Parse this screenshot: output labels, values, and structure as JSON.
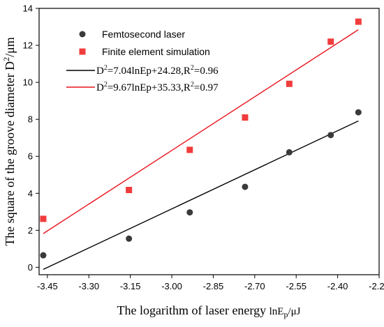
{
  "chart_data": {
    "type": "scatter",
    "xlabel_main": "The logarithm of laser energy ",
    "xlabel_unit": "lnE",
    "xlabel_sub": "p",
    "xlabel_tail": "/μJ",
    "ylabel_main": "The square of the groove diameter D",
    "ylabel_sup": "2",
    "ylabel_tail": "/μm",
    "xlim": [
      -3.48,
      -2.25
    ],
    "ylim": [
      -0.4,
      14
    ],
    "xticks": [
      -3.45,
      -3.3,
      -3.15,
      -3.0,
      -2.85,
      -2.7,
      -2.55,
      -2.4,
      -2.25
    ],
    "xtick_labels": [
      "-3.45",
      "-3.30",
      "-3.15",
      "-3.00",
      "-2.85",
      "-2.70",
      "-2.55",
      "-2.40",
      "-2.25"
    ],
    "yticks": [
      0,
      2,
      4,
      6,
      8,
      10,
      12,
      14
    ],
    "ytick_labels": [
      "0",
      "2",
      "4",
      "6",
      "8",
      "10",
      "12",
      "14"
    ],
    "grid": false,
    "legend_position": "top-left",
    "series": [
      {
        "name": "Femtosecond laser",
        "marker": "circle",
        "color": "#3a3a3a",
        "x": [
          -3.465,
          -3.155,
          -2.935,
          -2.735,
          -2.575,
          -2.425,
          -2.325
        ],
        "y": [
          0.65,
          1.55,
          2.97,
          4.35,
          6.22,
          7.15,
          8.38
        ]
      },
      {
        "name": "Finite element simulation",
        "marker": "square",
        "color": "#f03c3c",
        "x": [
          -3.465,
          -3.155,
          -2.935,
          -2.735,
          -2.575,
          -2.425,
          -2.325
        ],
        "y": [
          2.62,
          4.18,
          6.35,
          8.1,
          9.92,
          12.2,
          13.28
        ]
      }
    ],
    "fits": [
      {
        "label_main": "D",
        "label_sup": "2",
        "label_rest": "=7.04lnEp+24.28,R",
        "label_sup2": "2",
        "label_end": "=0.96",
        "color": "#000000",
        "slope": 7.04,
        "intercept": 24.28,
        "x_range": [
          -3.465,
          -2.325
        ]
      },
      {
        "label_main": "D",
        "label_sup": "2",
        "label_rest": "=9.67lnEp+35.33,R",
        "label_sup2": "2",
        "label_end": "=0.97",
        "color": "#e8141e",
        "slope": 9.67,
        "intercept": 35.33,
        "x_range": [
          -3.465,
          -2.325
        ]
      }
    ]
  }
}
